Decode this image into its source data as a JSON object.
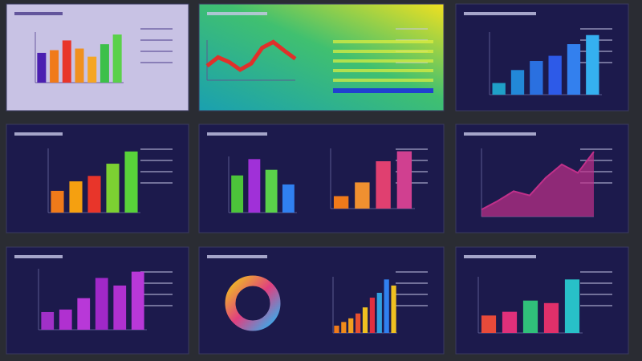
{
  "panels": [
    {
      "charts": [
        {
          "kind": "bar",
          "values": [
            55,
            60,
            78,
            63,
            48,
            71,
            89
          ],
          "colors": [
            "#4b1fb0",
            "#f07a1a",
            "#e8352a",
            "#f0901e",
            "#f5a623",
            "#3cc04a",
            "#5ad14a"
          ]
        }
      ]
    },
    {
      "charts": [
        {
          "kind": "line",
          "values": [
            30,
            48,
            38,
            22,
            35,
            68,
            80,
            62,
            45
          ],
          "color": "#e0302a"
        }
      ]
    },
    {
      "charts": [
        {
          "kind": "bar",
          "values": [
            18,
            38,
            52,
            60,
            78,
            92
          ],
          "colors": [
            "#1fa0c8",
            "#2288d8",
            "#2a70e0",
            "#2d5ae8",
            "#3380ee",
            "#35b0f0"
          ]
        }
      ]
    },
    {
      "charts": [
        {
          "kind": "bar",
          "values": [
            32,
            46,
            54,
            72,
            90
          ],
          "colors": [
            "#f07a1a",
            "#f5a010",
            "#e8352a",
            "#7cd032",
            "#58d23a"
          ]
        }
      ]
    },
    {
      "charts": [
        {
          "kind": "bar",
          "values": [
            66,
            95,
            76,
            50
          ],
          "colors": [
            "#4cc43a",
            "#a030d8",
            "#5ad14a",
            "#3080f0"
          ]
        },
        {
          "kind": "bar",
          "values": [
            20,
            42,
            76,
            92
          ],
          "colors": [
            "#f07a1a",
            "#f09030",
            "#e04070",
            "#d04090"
          ]
        }
      ]
    },
    {
      "charts": [
        {
          "kind": "area",
          "values": [
            10,
            22,
            36,
            30,
            55,
            74,
            62,
            92
          ],
          "color": "#c0308a"
        }
      ]
    },
    {
      "charts": [
        {
          "kind": "bar",
          "values": [
            28,
            32,
            50,
            82,
            70,
            92
          ],
          "colors": [
            "#a030c8",
            "#b030d0",
            "#b838d8",
            "#a028c8",
            "#b030d0",
            "#b838d8"
          ]
        }
      ]
    },
    {
      "charts": [
        {
          "kind": "bar",
          "values": [
            12,
            18,
            24,
            32,
            42,
            58,
            66,
            88,
            78
          ],
          "colors": [
            "#f07a1a",
            "#f08a1a",
            "#f0a020",
            "#e85030",
            "#f0c020",
            "#e03040",
            "#30a0e0",
            "#3080f0",
            "#f0c020"
          ]
        }
      ]
    },
    {
      "charts": [
        {
          "kind": "bar",
          "values": [
            28,
            34,
            52,
            48,
            86
          ],
          "colors": [
            "#e84a3a",
            "#e0307a",
            "#30c07a",
            "#e0306a",
            "#28c0c8"
          ]
        }
      ]
    }
  ]
}
